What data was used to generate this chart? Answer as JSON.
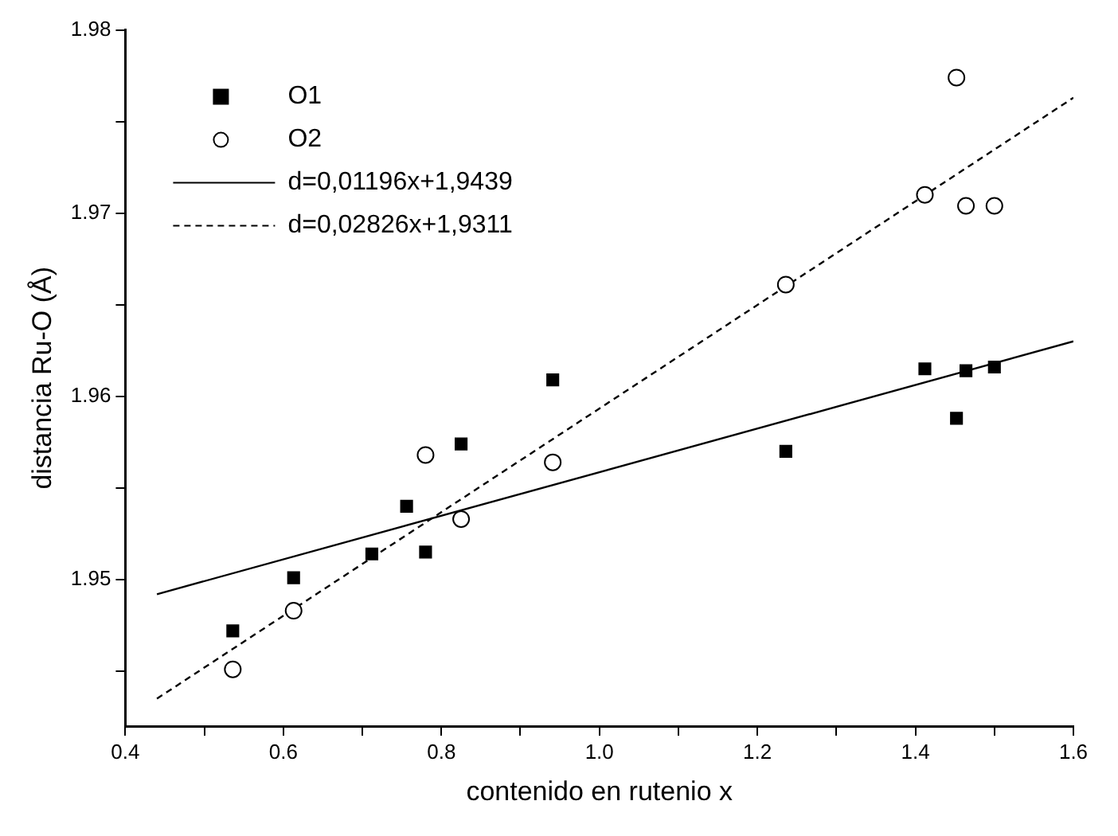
{
  "chart_data": {
    "type": "scatter",
    "xlabel": "contenido en rutenio x",
    "ylabel": "distancia Ru-O (Å)",
    "xlim": [
      0.4,
      1.6
    ],
    "ylim": [
      1.942,
      1.98
    ],
    "xticks": [
      0.4,
      {
        "value": 0.5,
        "label": null
      },
      0.6,
      {
        "value": 0.7,
        "label": null
      },
      0.8,
      {
        "value": 0.9,
        "label": null
      },
      {
        "value": 1,
        "label": "1.0"
      },
      {
        "value": 1.1,
        "label": null
      },
      1.2,
      {
        "value": 1.3,
        "label": null
      },
      1.4,
      {
        "value": 1.5,
        "label": null
      },
      1.6
    ],
    "yticks": [
      {
        "value": 1.945,
        "label": null
      },
      1.95,
      {
        "value": 1.955,
        "label": null
      },
      1.96,
      {
        "value": 1.965,
        "label": null
      },
      1.97,
      {
        "value": 1.975,
        "label": null
      },
      1.98
    ],
    "grid": false,
    "legend": "top left",
    "series": [
      {
        "name": "O1",
        "type": "scatter",
        "marker": "square",
        "color": "#000000",
        "x": [
          0.536,
          0.613,
          0.712,
          0.756,
          0.78,
          0.825,
          0.941,
          1.236,
          1.412,
          1.452,
          1.464,
          1.5
        ],
        "values": [
          1.9472,
          1.9501,
          1.9514,
          1.954,
          1.9515,
          1.9574,
          1.9609,
          1.957,
          1.9615,
          1.9588,
          1.9614,
          1.9616
        ]
      },
      {
        "name": "O2",
        "type": "scatter",
        "marker": "circle",
        "color": "#000000",
        "x": [
          0.536,
          0.613,
          0.78,
          0.825,
          0.941,
          1.236,
          1.412,
          1.452,
          1.464,
          1.5
        ],
        "values": [
          1.9451,
          1.9483,
          1.9568,
          1.9533,
          1.9564,
          1.9661,
          1.971,
          1.9774,
          1.9704,
          1.9704
        ]
      },
      {
        "name": "d=0,01196x+1,9439",
        "type": "line",
        "marker": "none",
        "line_style": "solid",
        "color": "#000000",
        "x": [
          0.44,
          1.6
        ],
        "values": [
          1.9492,
          1.963
        ]
      },
      {
        "name": "d=0,02826x+1,9311",
        "type": "line",
        "marker": "none",
        "line_style": "dashed",
        "color": "#000000",
        "x": [
          0.44,
          1.6
        ],
        "values": [
          1.9435,
          1.9763
        ]
      }
    ]
  }
}
